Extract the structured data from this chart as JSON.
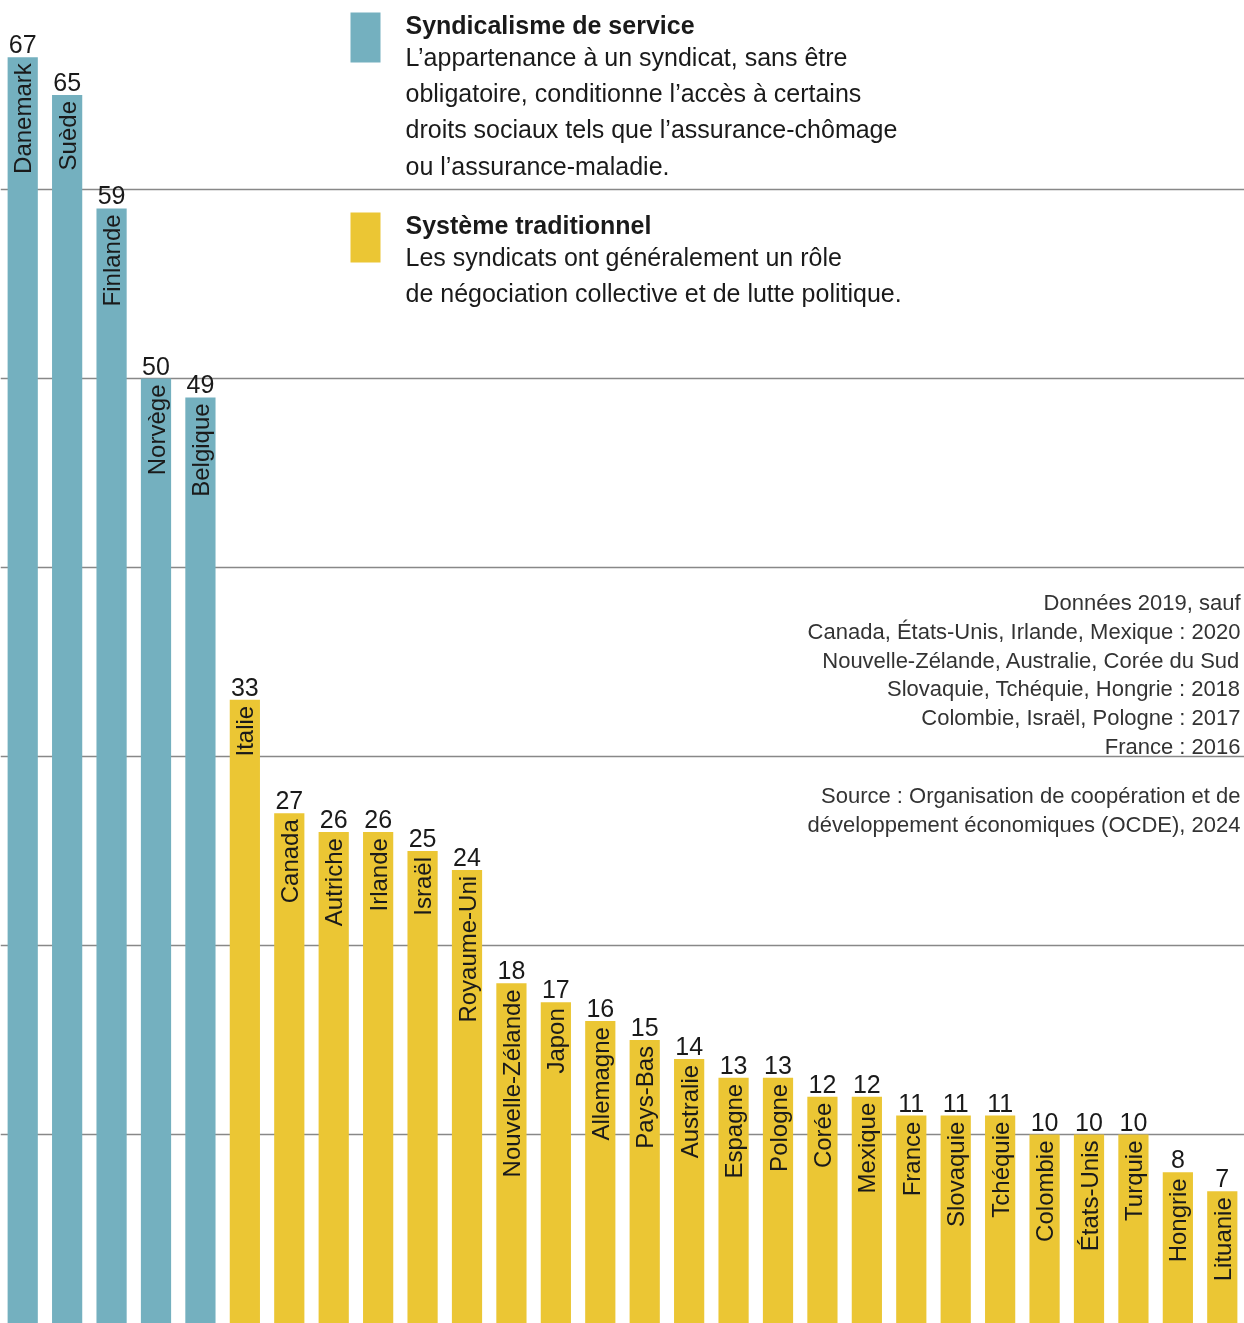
{
  "chart_data": {
    "type": "bar",
    "stacked": true,
    "categories": [
      "Danemark",
      "Suède",
      "Finlande",
      "Norvège",
      "Belgique",
      "Italie",
      "Canada",
      "Autriche",
      "Irlande",
      "Israël",
      "Royaume-Uni",
      "Nouvelle-Zélande",
      "Japon",
      "Allemagne",
      "Pays-Bas",
      "Australie",
      "Espagne",
      "Pologne",
      "Corée",
      "Mexique",
      "France",
      "Slovaquie",
      "Tchéquie",
      "Colombie",
      "États-Unis",
      "Turquie",
      "Hongrie",
      "Lituanie"
    ],
    "series": [
      {
        "name": "Syndicalisme de service",
        "color": "#74b0bf",
        "values": [
          67,
          65,
          59,
          50,
          49,
          null,
          null,
          null,
          null,
          null,
          null,
          null,
          null,
          null,
          null,
          null,
          null,
          null,
          null,
          null,
          null,
          null,
          null,
          null,
          null,
          null,
          null,
          null
        ]
      },
      {
        "name": "Système traditionnel",
        "color": "#ebc634",
        "values": [
          null,
          null,
          null,
          null,
          null,
          33,
          27,
          26,
          26,
          25,
          24,
          18,
          17,
          16,
          15,
          14,
          13,
          13,
          12,
          12,
          11,
          11,
          11,
          10,
          10,
          10,
          8,
          7
        ]
      }
    ],
    "ylim": [
      0,
      70
    ],
    "yticks": [
      10,
      20,
      30,
      40,
      50,
      60
    ],
    "tick_labels": false,
    "grid": "y",
    "legend": "top",
    "data_labels": true,
    "annotations": [
      "L’appartenance à un syndicat, sans être\nobligatoire, conditionne l’accès à certains\ndroits sociaux tels que l’assurance-chômage\nou l’assurance-maladie.",
      "Les syndicats ont généralement un rôle\nde négociation collective et de lutte politique.",
      "Données 2019, sauf\nCanada, États-Unis, Irlande, Mexique : 2020\nNouvelle-Zélande, Australie, Corée du Sud\nSlovaquie, Tchéquie, Hongrie : 2018\nColombie, Israël, Pologne : 2017\nFrance : 2016",
      "Source : Organisation de coopération et de\ndéveloppement économiques (OCDE), 2024"
    ]
  }
}
